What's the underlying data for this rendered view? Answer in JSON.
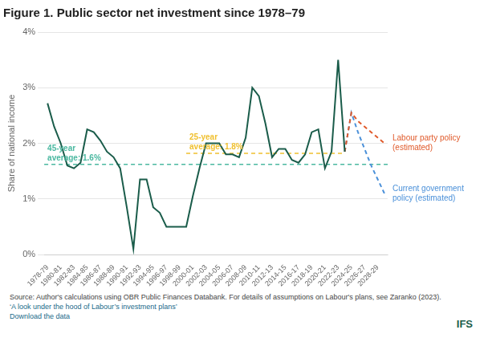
{
  "chart_data": {
    "type": "line",
    "title": "Figure 1. Public sector net investment since 1978–79",
    "ylabel": "Share of national income",
    "background": "#ffffff",
    "grid": "y",
    "xlim": [
      1977.5,
      2029.5
    ],
    "xticks": [
      {
        "value": 1978,
        "label": "1978-79"
      },
      {
        "value": 1980,
        "label": "1980-81"
      },
      {
        "value": 1982,
        "label": "1982-83"
      },
      {
        "value": 1984,
        "label": "1984-85"
      },
      {
        "value": 1986,
        "label": "1986-87"
      },
      {
        "value": 1988,
        "label": "1988-89"
      },
      {
        "value": 1990,
        "label": "1990-91"
      },
      {
        "value": 1992,
        "label": "1992-93"
      },
      {
        "value": 1994,
        "label": "1994-95"
      },
      {
        "value": 1996,
        "label": "1996-97"
      },
      {
        "value": 1998,
        "label": "1998-99"
      },
      {
        "value": 2000,
        "label": "2000-01"
      },
      {
        "value": 2002,
        "label": "2002-03"
      },
      {
        "value": 2004,
        "label": "2004-05"
      },
      {
        "value": 2006,
        "label": "2006-07"
      },
      {
        "value": 2008,
        "label": "2008-09"
      },
      {
        "value": 2010,
        "label": "2010-11"
      },
      {
        "value": 2012,
        "label": "2012-13"
      },
      {
        "value": 2014,
        "label": "2014-15"
      },
      {
        "value": 2016,
        "label": "2016-17"
      },
      {
        "value": 2018,
        "label": "2018-19"
      },
      {
        "value": 2020,
        "label": "2020-21"
      },
      {
        "value": 2022,
        "label": "2022-23"
      },
      {
        "value": 2024,
        "label": "2024-25"
      },
      {
        "value": 2026,
        "label": "2026-27"
      },
      {
        "value": 2028,
        "label": "2028-29"
      }
    ],
    "ylim": [
      0,
      4.0
    ],
    "yticks": [
      {
        "value": 0,
        "label": "0%"
      },
      {
        "value": 1,
        "label": "1%"
      },
      {
        "value": 2,
        "label": "2%"
      },
      {
        "value": 3,
        "label": "3%"
      },
      {
        "value": 4,
        "label": "4%"
      }
    ],
    "series": [
      {
        "color": "#1a5c4a",
        "line_style": "solid",
        "x": [
          1978,
          1979,
          1980,
          1981,
          1982,
          1983,
          1984,
          1985,
          1986,
          1987,
          1988,
          1989,
          1990,
          1991,
          1992,
          1993,
          1994,
          1995,
          1996,
          1997,
          1998,
          1999,
          2000,
          2001,
          2002,
          2003,
          2004,
          2005,
          2006,
          2007,
          2008,
          2009,
          2010,
          2011,
          2012,
          2013,
          2014,
          2015,
          2016,
          2017,
          2018,
          2019,
          2020,
          2021,
          2022,
          2023
        ],
        "values": [
          2.72,
          2.3,
          2.0,
          1.6,
          1.55,
          1.65,
          2.25,
          2.2,
          2.05,
          1.85,
          1.75,
          1.55,
          0.85,
          0.1,
          1.35,
          1.35,
          0.85,
          0.75,
          0.5,
          0.5,
          0.5,
          0.5,
          1.05,
          1.55,
          2.0,
          2.0,
          2.0,
          1.8,
          1.8,
          1.75,
          2.1,
          3.0,
          2.85,
          2.35,
          1.75,
          1.9,
          1.9,
          1.7,
          1.65,
          1.8,
          2.2,
          2.25,
          1.55,
          1.85,
          3.5,
          1.85
        ]
      },
      {
        "color": "#e05a2b",
        "line_style": "dashed",
        "label": "Labour party policy\n(estimated)",
        "x": [
          2023,
          2024,
          2025,
          2026,
          2027,
          2028,
          2029
        ],
        "values": [
          1.85,
          2.55,
          2.4,
          2.3,
          2.2,
          2.1,
          2.0
        ]
      },
      {
        "color": "#4a90d9",
        "line_style": "dashed",
        "label": "Current government\npolicy (estimated)",
        "x": [
          2023,
          2024,
          2025,
          2026,
          2027,
          2028,
          2029
        ],
        "values": [
          1.85,
          2.55,
          2.2,
          1.9,
          1.6,
          1.35,
          1.1
        ]
      }
    ],
    "reference_lines": [
      {
        "value": 1.62,
        "color": "#4ab8a0",
        "line_style": "dashed",
        "label": "45-year\naverage: 1.6%"
      },
      {
        "value": 1.82,
        "x": [
          1999,
          2023
        ],
        "color": "#f0c030",
        "line_style": "dashed",
        "label": "25-year\naverage: 1.8%"
      }
    ],
    "source_text": "Source: Author's calculations using OBR Public Finances Databank. For details of assumptions on Labour's plans, see Zaranko (2023).",
    "links": [
      "‘A look under the hood of Labour’s investment plans’",
      "Download the data"
    ],
    "logo_text": "IFS",
    "logo_color": "#1a5c4a"
  }
}
